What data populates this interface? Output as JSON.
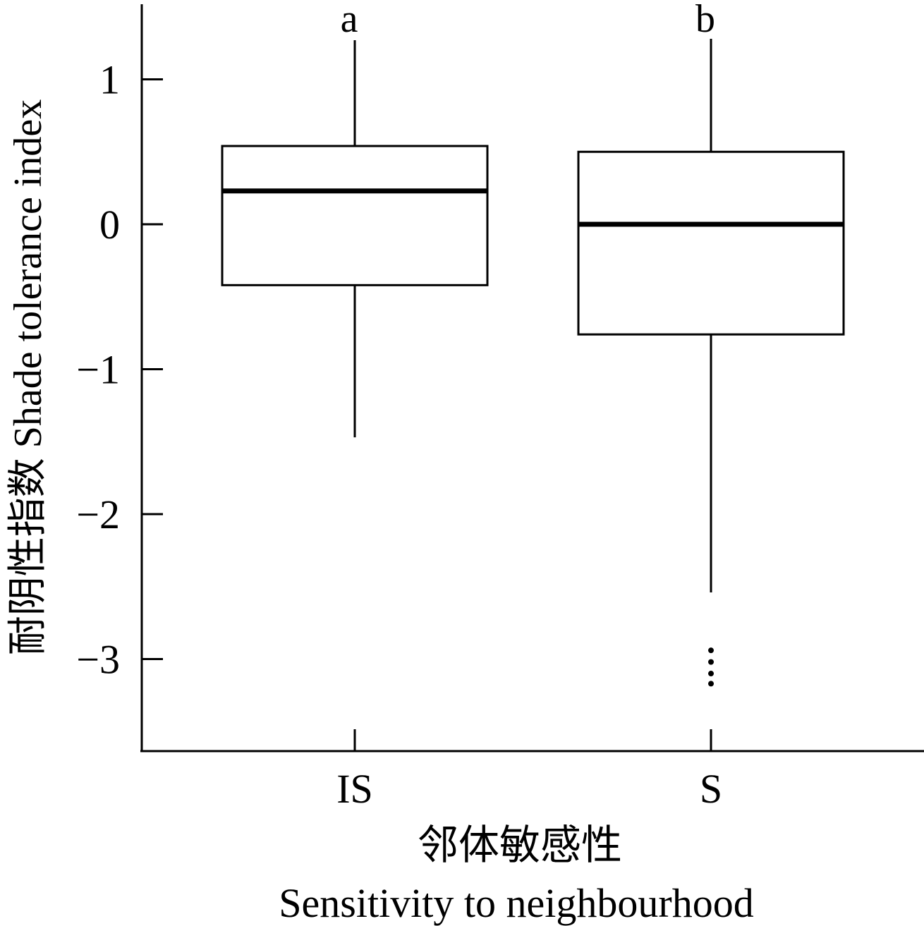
{
  "chart_data": {
    "type": "box",
    "ylabel": "耐阴性指数 Shade tolerance index",
    "xlabel_cn": "邻体敏感性",
    "xlabel_en": "Sensitivity to neighbourhood",
    "categories": [
      "IS",
      "S"
    ],
    "ylim": [
      -3.65,
      1.5
    ],
    "yticks": [
      1,
      0,
      -1,
      -2,
      -3
    ],
    "ytick_labels": [
      "1",
      "0",
      "−1",
      "−2",
      "−3"
    ],
    "series": [
      {
        "category": "IS",
        "significance": "a",
        "whisker_high": 1.27,
        "q3": 0.54,
        "median": 0.23,
        "q1": -0.42,
        "whisker_low": -1.47,
        "outliers": []
      },
      {
        "category": "S",
        "significance": "b",
        "whisker_high": 1.28,
        "q3": 0.5,
        "median": 0.0,
        "q1": -0.76,
        "whisker_low": -2.54,
        "outliers": [
          -2.94,
          -3.02,
          -3.1,
          -3.17
        ]
      }
    ],
    "grid": false,
    "legend": "none",
    "colors": {
      "line": "#000000",
      "box_fill": "#ffffff"
    }
  }
}
